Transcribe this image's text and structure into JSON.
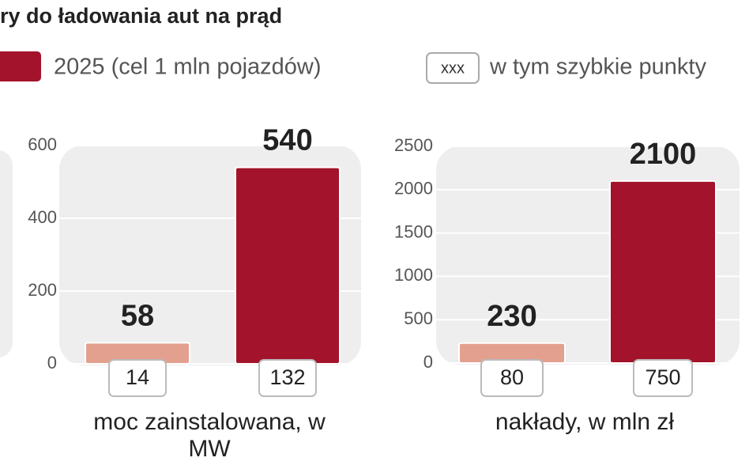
{
  "header": {
    "title": "ry do ładowania aut na prąd",
    "legend": [
      {
        "label": "2025 (cel 1 mln pojazdów)",
        "color": "#a3132b"
      },
      {
        "key": "xxx",
        "label": "w tym szybkie punkty"
      }
    ]
  },
  "chart_data": [
    {
      "type": "bar",
      "xlabel": "moc zainstalowana, w MW",
      "values": [
        58,
        540
      ],
      "colors": [
        "#e3a08f",
        "#a3132b"
      ],
      "subset_values": [
        14,
        132
      ],
      "ylim": [
        0,
        600
      ],
      "yticks": [
        0,
        200,
        400,
        600
      ],
      "grid": true
    },
    {
      "type": "bar",
      "xlabel": "nakłady, w mln zł",
      "values": [
        230,
        2100
      ],
      "colors": [
        "#e3a08f",
        "#a3132b"
      ],
      "subset_values": [
        80,
        750
      ],
      "ylim": [
        0,
        2500
      ],
      "yticks": [
        0,
        500,
        1000,
        1500,
        2000,
        2500
      ],
      "grid": true
    }
  ]
}
